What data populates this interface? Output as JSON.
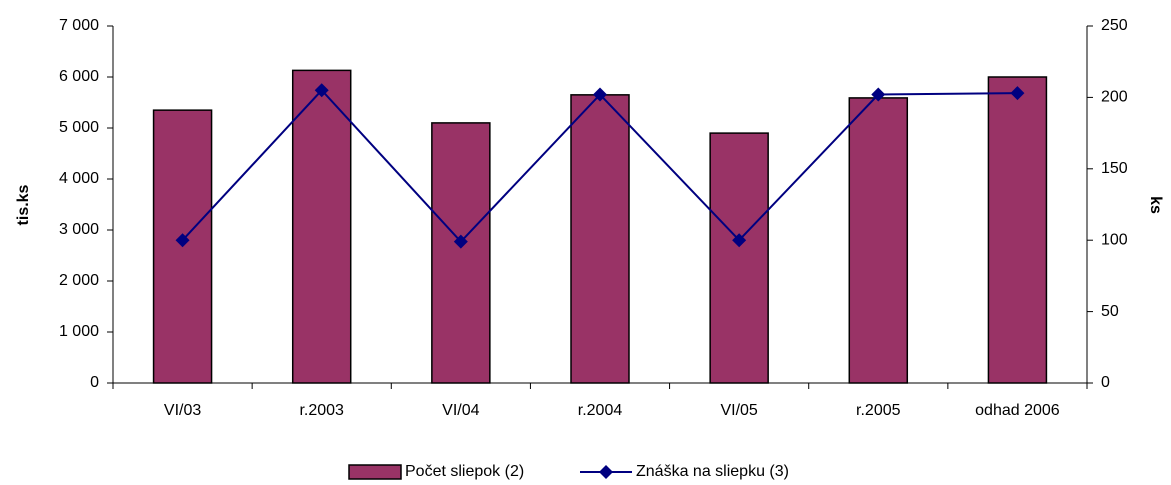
{
  "chart_data": {
    "type": "bar_line",
    "categories": [
      "VI/03",
      "r.2003",
      "VI/04",
      "r.2004",
      "VI/05",
      "r.2005",
      "odhad 2006"
    ],
    "series": [
      {
        "name": "Počet sliepok (2)",
        "type": "bar",
        "color": "#993366",
        "values": [
          5350,
          6130,
          5100,
          5650,
          4900,
          5590,
          6000
        ]
      },
      {
        "name": "Znáška na sliepku  (3)",
        "type": "line",
        "axis": "y2",
        "color": "#000080",
        "values": [
          100,
          205,
          99,
          202,
          100,
          202,
          203
        ]
      }
    ],
    "ylabel": "tis.ks",
    "y2label": "ks",
    "ylim": [
      0,
      7000
    ],
    "yticks": [
      0,
      {
        "value": 1000,
        "label": "1 000"
      },
      {
        "value": 2000,
        "label": "2 000"
      },
      {
        "value": 3000,
        "label": "3 000"
      },
      {
        "value": 4000,
        "label": "4 000"
      },
      {
        "value": 5000,
        "label": "5 000"
      },
      {
        "value": 6000,
        "label": "6 000"
      },
      {
        "value": 7000,
        "label": "7 000"
      }
    ],
    "y2lim": [
      0,
      250
    ],
    "y2ticks": [
      0,
      50,
      100,
      150,
      200,
      250
    ],
    "grid": false,
    "legend": "bottom"
  }
}
